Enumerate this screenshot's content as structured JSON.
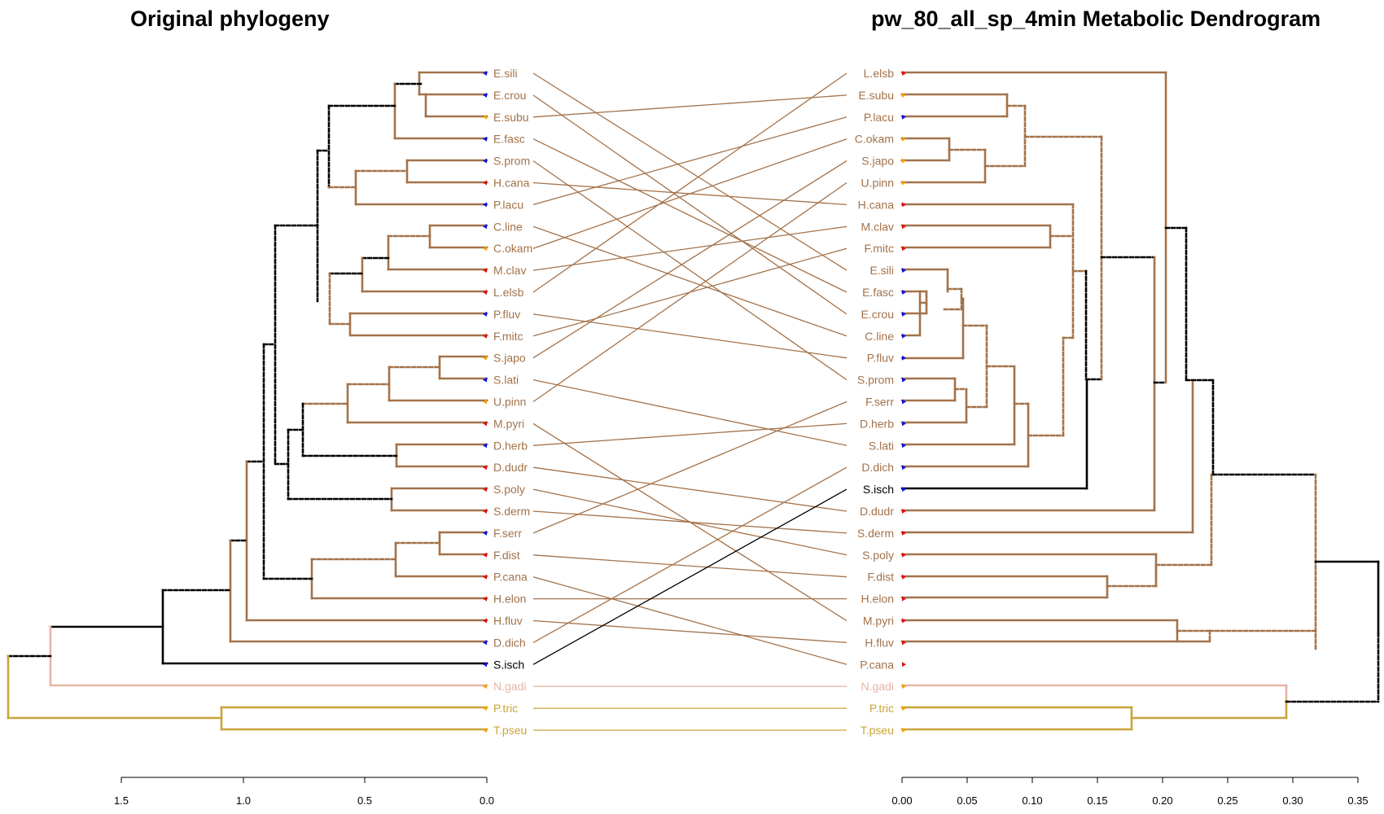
{
  "left_title": "Original phylogeny",
  "right_title": "pw_80_all_sp_4min Metabolic Dendrogram",
  "colors": {
    "brown": "#a3724a",
    "pink": "#e8b4a3",
    "gold": "#c9a43a",
    "black": "#000000",
    "marker_blue": "#1010e0",
    "marker_red": "#e01010",
    "marker_orange": "#f0a010"
  },
  "left_tips": [
    {
      "label": "E.sili",
      "marker": "blue",
      "color": "brown"
    },
    {
      "label": "E.crou",
      "marker": "blue",
      "color": "brown"
    },
    {
      "label": "E.subu",
      "marker": "orange",
      "color": "brown"
    },
    {
      "label": "E.fasc",
      "marker": "blue",
      "color": "brown"
    },
    {
      "label": "S.prom",
      "marker": "blue",
      "color": "brown"
    },
    {
      "label": "H.cana",
      "marker": "red",
      "color": "brown"
    },
    {
      "label": "P.lacu",
      "marker": "blue",
      "color": "brown"
    },
    {
      "label": "C.line",
      "marker": "blue",
      "color": "brown"
    },
    {
      "label": "C.okam",
      "marker": "orange",
      "color": "brown"
    },
    {
      "label": "M.clav",
      "marker": "red",
      "color": "brown"
    },
    {
      "label": "L.elsb",
      "marker": "red",
      "color": "brown"
    },
    {
      "label": "P.fluv",
      "marker": "blue",
      "color": "brown"
    },
    {
      "label": "F.mitc",
      "marker": "red",
      "color": "brown"
    },
    {
      "label": "S.japo",
      "marker": "orange",
      "color": "brown"
    },
    {
      "label": "S.lati",
      "marker": "blue",
      "color": "brown"
    },
    {
      "label": "U.pinn",
      "marker": "orange",
      "color": "brown"
    },
    {
      "label": "M.pyri",
      "marker": "red",
      "color": "brown"
    },
    {
      "label": "D.herb",
      "marker": "blue",
      "color": "brown"
    },
    {
      "label": "D.dudr",
      "marker": "red",
      "color": "brown"
    },
    {
      "label": "S.poly",
      "marker": "red",
      "color": "brown"
    },
    {
      "label": "S.derm",
      "marker": "red",
      "color": "brown"
    },
    {
      "label": "F.serr",
      "marker": "blue",
      "color": "brown"
    },
    {
      "label": "F.dist",
      "marker": "red",
      "color": "brown"
    },
    {
      "label": "P.cana",
      "marker": "red",
      "color": "brown"
    },
    {
      "label": "H.elon",
      "marker": "red",
      "color": "brown"
    },
    {
      "label": "H.fluv",
      "marker": "red",
      "color": "brown"
    },
    {
      "label": "D.dich",
      "marker": "blue",
      "color": "brown"
    },
    {
      "label": "S.isch",
      "marker": "blue",
      "color": "black"
    },
    {
      "label": "N.gadi",
      "marker": "orange",
      "color": "pink"
    },
    {
      "label": "P.tric",
      "marker": "orange",
      "color": "gold"
    },
    {
      "label": "T.pseu",
      "marker": "orange",
      "color": "gold"
    }
  ],
  "right_tips": [
    {
      "label": "L.elsb",
      "marker": "red",
      "color": "brown"
    },
    {
      "label": "E.subu",
      "marker": "orange",
      "color": "brown"
    },
    {
      "label": "P.lacu",
      "marker": "blue",
      "color": "brown"
    },
    {
      "label": "C.okam",
      "marker": "orange",
      "color": "brown"
    },
    {
      "label": "S.japo",
      "marker": "orange",
      "color": "brown"
    },
    {
      "label": "U.pinn",
      "marker": "orange",
      "color": "brown"
    },
    {
      "label": "H.cana",
      "marker": "red",
      "color": "brown"
    },
    {
      "label": "M.clav",
      "marker": "red",
      "color": "brown"
    },
    {
      "label": "F.mitc",
      "marker": "red",
      "color": "brown"
    },
    {
      "label": "E.sili",
      "marker": "blue",
      "color": "brown"
    },
    {
      "label": "E.fasc",
      "marker": "blue",
      "color": "brown"
    },
    {
      "label": "E.crou",
      "marker": "blue",
      "color": "brown"
    },
    {
      "label": "C.line",
      "marker": "blue",
      "color": "brown"
    },
    {
      "label": "P.fluv",
      "marker": "blue",
      "color": "brown"
    },
    {
      "label": "S.prom",
      "marker": "blue",
      "color": "brown"
    },
    {
      "label": "F.serr",
      "marker": "blue",
      "color": "brown"
    },
    {
      "label": "D.herb",
      "marker": "blue",
      "color": "brown"
    },
    {
      "label": "S.lati",
      "marker": "blue",
      "color": "brown"
    },
    {
      "label": "D.dich",
      "marker": "blue",
      "color": "brown"
    },
    {
      "label": "S.isch",
      "marker": "blue",
      "color": "black"
    },
    {
      "label": "D.dudr",
      "marker": "red",
      "color": "brown"
    },
    {
      "label": "S.derm",
      "marker": "red",
      "color": "brown"
    },
    {
      "label": "S.poly",
      "marker": "red",
      "color": "brown"
    },
    {
      "label": "F.dist",
      "marker": "red",
      "color": "brown"
    },
    {
      "label": "H.elon",
      "marker": "red",
      "color": "brown"
    },
    {
      "label": "M.pyri",
      "marker": "red",
      "color": "brown"
    },
    {
      "label": "H.fluv",
      "marker": "red",
      "color": "brown"
    },
    {
      "label": "P.cana",
      "marker": "red",
      "color": "brown"
    },
    {
      "label": "N.gadi",
      "marker": "orange",
      "color": "pink"
    },
    {
      "label": "P.tric",
      "marker": "orange",
      "color": "gold"
    },
    {
      "label": "T.pseu",
      "marker": "orange",
      "color": "gold"
    }
  ],
  "left_axis": {
    "ticks": [
      "1.5",
      "1.0",
      "0.5",
      "0.0"
    ]
  },
  "right_axis": {
    "ticks": [
      "0.00",
      "0.05",
      "0.10",
      "0.15",
      "0.20",
      "0.25",
      "0.30",
      "0.35"
    ]
  }
}
